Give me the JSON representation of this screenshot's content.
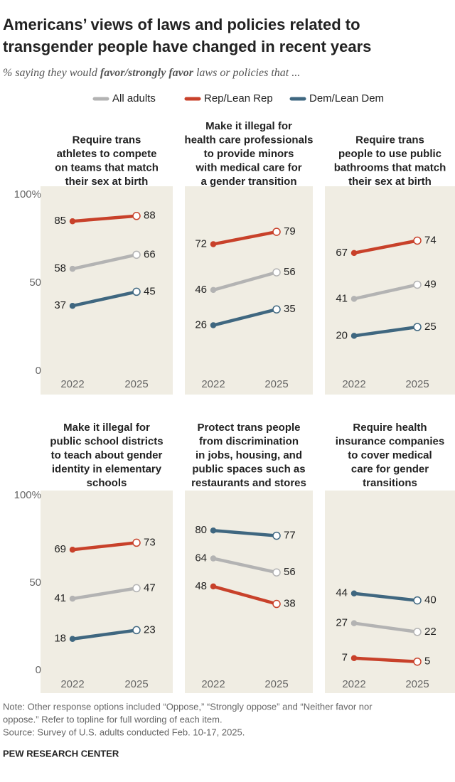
{
  "title": [
    "Americans’ views of laws and policies related to",
    "transgender people have changed in recent years"
  ],
  "subtitle": [
    "% saying they would ",
    "favor/strongly favor",
    " laws or policies that ..."
  ],
  "legend": [
    {
      "name": "All adults",
      "color": "#b3b3b3"
    },
    {
      "name": "Rep/Lean Rep",
      "color": "#c8412a"
    },
    {
      "name": "Dem/Lean Dem",
      "color": "#3f6780"
    }
  ],
  "note": [
    "Note: Other response options included “Oppose,” “Strongly oppose” and “Neither favor nor",
    "oppose.” Refer to topline for full wording of each item."
  ],
  "source": "Source: Survey of U.S. adults conducted Feb. 10-17, 2025.",
  "footer": "PEW RESEARCH CENTER",
  "chart_data": [
    {
      "type": "line",
      "title": [
        "Require trans",
        "athletes to compete",
        "on teams that match",
        "their sex at birth"
      ],
      "categories": [
        "2022",
        "2025"
      ],
      "series": [
        {
          "values": [
            58,
            66
          ]
        },
        {
          "values": [
            85,
            88
          ]
        },
        {
          "values": [
            37,
            45
          ]
        }
      ],
      "ylim": [
        0,
        100
      ],
      "yticks": [
        0,
        50,
        {
          "value": 100,
          "label": "100%"
        }
      ]
    },
    {
      "type": "line",
      "title": [
        "Make it illegal for",
        "health care professionals",
        "to provide minors",
        "with medical care for",
        "a gender transition"
      ],
      "categories": [
        "2022",
        "2025"
      ],
      "series": [
        {
          "values": [
            46,
            56
          ]
        },
        {
          "values": [
            72,
            79
          ]
        },
        {
          "values": [
            26,
            35
          ]
        }
      ],
      "ylim": [
        0,
        100
      ]
    },
    {
      "type": "line",
      "title": [
        "Require trans",
        "people to use public",
        "bathrooms that match",
        "their sex at birth"
      ],
      "categories": [
        "2022",
        "2025"
      ],
      "series": [
        {
          "values": [
            41,
            49
          ]
        },
        {
          "values": [
            67,
            74
          ]
        },
        {
          "values": [
            20,
            25
          ]
        }
      ],
      "ylim": [
        0,
        100
      ]
    },
    {
      "type": "line",
      "title": [
        "Make it illegal for",
        "public school districts",
        "to teach about gender",
        "identity in elementary",
        "schools"
      ],
      "categories": [
        "2022",
        "2025"
      ],
      "series": [
        {
          "values": [
            41,
            47
          ]
        },
        {
          "values": [
            69,
            73
          ]
        },
        {
          "values": [
            18,
            23
          ]
        }
      ],
      "ylim": [
        0,
        100
      ],
      "yticks": [
        0,
        50,
        {
          "value": 100,
          "label": "100%"
        }
      ]
    },
    {
      "type": "line",
      "title": [
        "Protect trans people",
        "from discrimination",
        "in jobs, housing, and",
        "public spaces such as",
        "restaurants and stores"
      ],
      "categories": [
        "2022",
        "2025"
      ],
      "series": [
        {
          "values": [
            64,
            56
          ]
        },
        {
          "values": [
            48,
            38
          ]
        },
        {
          "values": [
            80,
            77
          ]
        }
      ],
      "ylim": [
        0,
        100
      ]
    },
    {
      "type": "line",
      "title": [
        "Require health",
        "insurance companies",
        "to cover medical",
        "care for gender",
        "transitions"
      ],
      "categories": [
        "2022",
        "2025"
      ],
      "series": [
        {
          "values": [
            27,
            22
          ]
        },
        {
          "values": [
            7,
            5
          ]
        },
        {
          "values": [
            44,
            40
          ]
        }
      ],
      "ylim": [
        0,
        100
      ]
    }
  ]
}
